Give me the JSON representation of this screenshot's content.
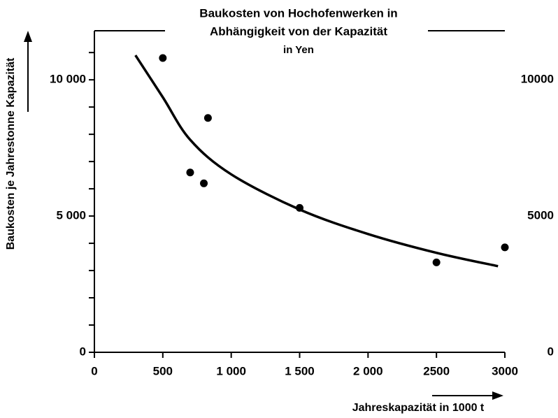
{
  "chart_data": {
    "type": "scatter",
    "title": [
      "Baukosten von Hochofenwerken in",
      "Abhängigkeit von der Kapazität",
      "in Yen"
    ],
    "xlabel": "Jahreskapazität in 1000 t",
    "ylabel": "Baukosten je Jahrestonne Kapazität",
    "color": "#000000",
    "x": [
      500,
      700,
      800,
      830,
      1500,
      2500,
      3000
    ],
    "y": [
      10800,
      6600,
      6200,
      8600,
      5300,
      3300,
      3850
    ],
    "curve": {
      "x": [
        300,
        500,
        700,
        1000,
        1500,
        2000,
        2500,
        2950
      ],
      "y": [
        10900,
        9360,
        7800,
        6530,
        5240,
        4340,
        3650,
        3160
      ]
    },
    "xlim": [
      0,
      3000
    ],
    "xticks": [
      0,
      500,
      {
        "value": 1000,
        "label": "1 000"
      },
      {
        "value": 1500,
        "label": "1 500"
      },
      {
        "value": 2000,
        "label": "2 000"
      },
      2500,
      3000
    ],
    "ylim": [
      0,
      11800
    ],
    "yticks": [
      0,
      {
        "value": 5000,
        "label": "5 000"
      },
      {
        "value": 10000,
        "label": "10 000"
      }
    ],
    "yminor_ticks": [
      1000,
      2000,
      3000,
      4000,
      6000,
      7000,
      8000,
      9000,
      11000
    ],
    "y2lim": [
      0,
      11800
    ],
    "y2ticks": [
      0,
      5000,
      10000
    ]
  }
}
